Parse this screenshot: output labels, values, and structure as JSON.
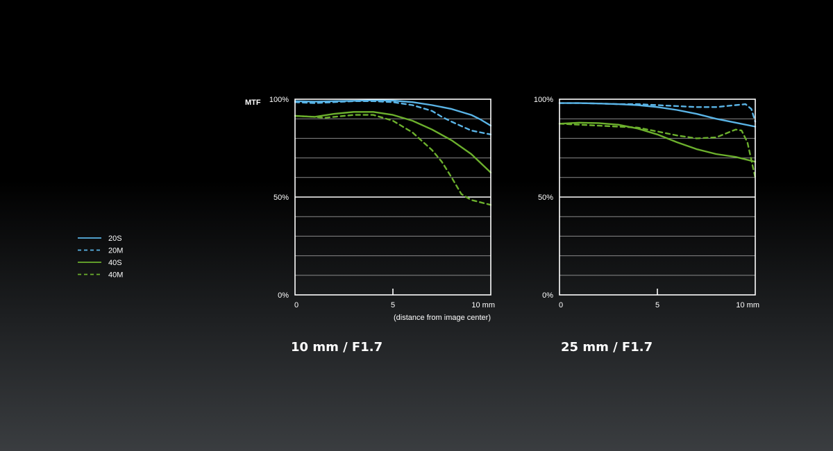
{
  "legend": [
    {
      "name": "20S",
      "color": "#5ab4e6",
      "style": "solid"
    },
    {
      "name": "20M",
      "color": "#5ab4e6",
      "style": "dashed"
    },
    {
      "name": "40S",
      "color": "#6cb02d",
      "style": "solid"
    },
    {
      "name": "40M",
      "color": "#6cb02d",
      "style": "dashed"
    }
  ],
  "y_axis_title": "MTF",
  "x_axis_note": "(distance from image center)",
  "chart_data": [
    {
      "type": "line",
      "caption": "10 mm / F1.7",
      "xlim": [
        0,
        10
      ],
      "ylim": [
        0,
        100
      ],
      "x_ticks": [
        {
          "value": 0,
          "label": "0"
        },
        {
          "value": 5,
          "label": "5"
        },
        {
          "value": 10,
          "label": "10 mm"
        }
      ],
      "y_ticks": [
        {
          "value": 100,
          "label": "100%"
        },
        {
          "value": 50,
          "label": "50%"
        },
        {
          "value": 0,
          "label": "0%"
        }
      ],
      "grid": true,
      "series": [
        {
          "name": "20S",
          "x": [
            0,
            1,
            2,
            3,
            4,
            5,
            6,
            7,
            8,
            9,
            9.5,
            10
          ],
          "y": [
            99,
            98.8,
            99,
            99.2,
            99.5,
            99.3,
            98.5,
            97,
            95,
            92,
            89.5,
            86.5
          ]
        },
        {
          "name": "20M",
          "x": [
            0,
            1,
            2,
            3,
            4,
            5,
            6,
            7,
            7.5,
            8,
            9,
            10
          ],
          "y": [
            98.5,
            98,
            98.5,
            99,
            99,
            98.5,
            97,
            94,
            91,
            88.5,
            84,
            82
          ]
        },
        {
          "name": "40S",
          "x": [
            0,
            1,
            2,
            3,
            3.5,
            4,
            5,
            6,
            7,
            8,
            9,
            10
          ],
          "y": [
            91.5,
            91,
            92.5,
            93.5,
            93.5,
            93.5,
            92,
            89,
            84.5,
            79,
            72,
            62.5
          ]
        },
        {
          "name": "40M",
          "x": [
            0,
            1,
            1.5,
            2,
            3,
            4,
            5,
            6,
            7,
            7.5,
            8,
            8.5,
            9,
            10
          ],
          "y": [
            91.5,
            91,
            90.5,
            91,
            92,
            92,
            89,
            83,
            74,
            68,
            60,
            51.5,
            48.5,
            46
          ]
        }
      ]
    },
    {
      "type": "line",
      "caption": "25 mm / F1.7",
      "xlim": [
        0,
        10
      ],
      "ylim": [
        0,
        100
      ],
      "x_ticks": [
        {
          "value": 0,
          "label": "0"
        },
        {
          "value": 5,
          "label": "5"
        },
        {
          "value": 10,
          "label": "10 mm"
        }
      ],
      "y_ticks": [
        {
          "value": 100,
          "label": "100%"
        },
        {
          "value": 50,
          "label": "50%"
        },
        {
          "value": 0,
          "label": "0%"
        }
      ],
      "grid": true,
      "series": [
        {
          "name": "20S",
          "x": [
            0,
            1,
            2,
            3,
            4,
            5,
            6,
            7,
            8,
            9,
            10
          ],
          "y": [
            98,
            98,
            97.8,
            97.5,
            97,
            96,
            94.5,
            92.5,
            90,
            88,
            86
          ]
        },
        {
          "name": "20M",
          "x": [
            0,
            1,
            2,
            3,
            4,
            5,
            6,
            7,
            8,
            9,
            9.5,
            9.8,
            10
          ],
          "y": [
            98,
            98,
            97.8,
            97.5,
            97.5,
            97,
            96.5,
            96,
            96,
            97,
            97.5,
            95,
            88.5
          ]
        },
        {
          "name": "40S",
          "x": [
            0,
            1,
            2,
            3,
            4,
            5,
            6,
            7,
            8,
            9,
            10
          ],
          "y": [
            87.5,
            88,
            87.8,
            87,
            85,
            82,
            78,
            74.5,
            72,
            70.5,
            68
          ]
        },
        {
          "name": "40M",
          "x": [
            0,
            1,
            2,
            3,
            4,
            5,
            6,
            7,
            8,
            8.5,
            9,
            9.3,
            9.6,
            10
          ],
          "y": [
            87.5,
            87,
            86.5,
            86,
            85.5,
            83.5,
            81.5,
            80,
            80.5,
            82.5,
            84.5,
            84,
            78,
            60
          ]
        }
      ]
    }
  ]
}
